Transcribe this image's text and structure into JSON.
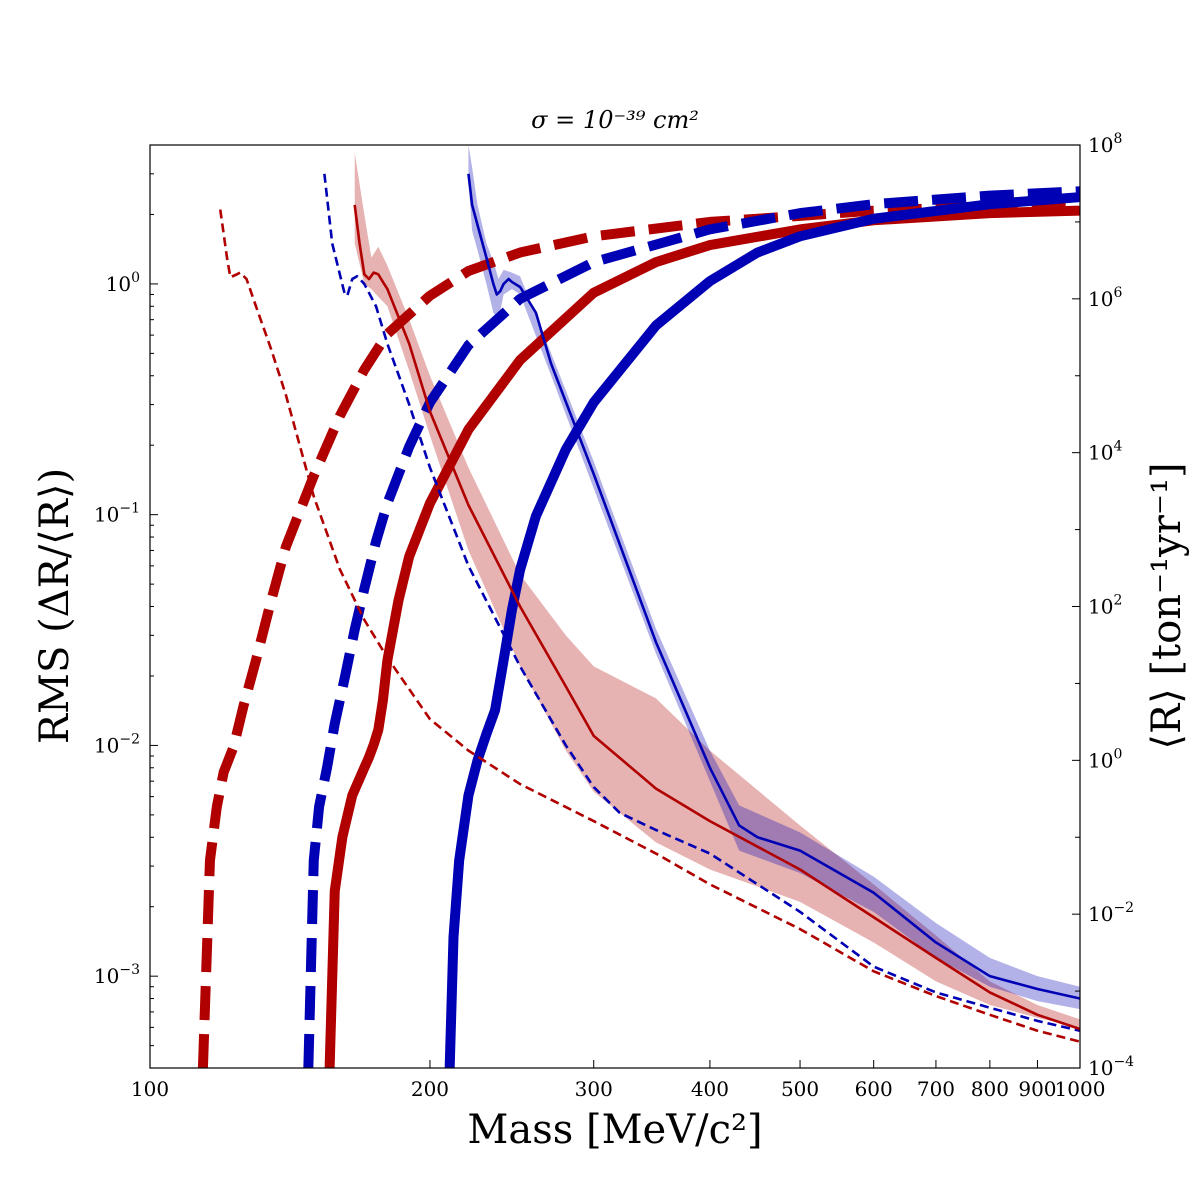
{
  "chart_data": {
    "type": "line",
    "title": "σ = 10⁻³⁹ cm²",
    "xlabel": "Mass [MeV/c²]",
    "ylabel_left": "RMS (ΔR/⟨R⟩)",
    "ylabel_right": "⟨R⟩ [ton⁻¹yr⁻¹]",
    "xscale": "log",
    "yscale_left": "log",
    "yscale_right": "log",
    "xlim": [
      100,
      1000
    ],
    "ylim_left": [
      0.0004,
      4
    ],
    "ylim_right": [
      0.0001,
      100000000
    ],
    "x_ticks": [
      {
        "value": 100,
        "label": "100"
      },
      {
        "value": 200,
        "label": "200"
      },
      {
        "value": 300,
        "label": "300"
      },
      {
        "value": 400,
        "label": "400"
      },
      {
        "value": 500,
        "label": "500"
      },
      {
        "value": 600,
        "label": "600"
      },
      {
        "value": 700,
        "label": "700"
      },
      {
        "value": 800,
        "label": "800"
      },
      {
        "value": 900,
        "label": "900"
      },
      {
        "value": 1000,
        "label": "1000"
      }
    ],
    "y_ticks_left": [
      {
        "value": 0.001,
        "base": "10",
        "exp": "−3"
      },
      {
        "value": 0.01,
        "base": "10",
        "exp": "−2"
      },
      {
        "value": 0.1,
        "base": "10",
        "exp": "−1"
      },
      {
        "value": 1,
        "base": "10",
        "exp": "0"
      }
    ],
    "y_ticks_right": [
      {
        "value": 0.0001,
        "base": "10",
        "exp": "−4"
      },
      {
        "value": 0.01,
        "base": "10",
        "exp": "−2"
      },
      {
        "value": 1,
        "base": "10",
        "exp": "0"
      },
      {
        "value": 100,
        "base": "10",
        "exp": "2"
      },
      {
        "value": 10000,
        "base": "10",
        "exp": "4"
      },
      {
        "value": 1000000,
        "base": "10",
        "exp": "6"
      },
      {
        "value": 100000000,
        "base": "10",
        "exp": "8"
      }
    ],
    "series": [
      {
        "name": "rate-red-dashed",
        "axis": "right",
        "color": "#b00000",
        "style": "dashed-thick",
        "points": [
          [
            114,
            0.0001
          ],
          [
            116,
            0.05
          ],
          [
            118,
            0.25
          ],
          [
            120,
            0.7
          ],
          [
            123,
            1.5
          ],
          [
            126,
            5
          ],
          [
            130,
            20
          ],
          [
            135,
            120
          ],
          [
            140,
            600
          ],
          [
            150,
            5000
          ],
          [
            160,
            30000
          ],
          [
            170,
            120000
          ],
          [
            180,
            350000
          ],
          [
            200,
            1100000
          ],
          [
            220,
            2300000
          ],
          [
            250,
            4000000
          ],
          [
            300,
            6500000
          ],
          [
            400,
            10000000
          ],
          [
            500,
            12000000
          ],
          [
            600,
            14000000
          ],
          [
            800,
            16000000
          ],
          [
            1000,
            17000000
          ]
        ]
      },
      {
        "name": "rate-blue-dashed",
        "axis": "right",
        "color": "#0000b4",
        "style": "dashed-thick",
        "points": [
          [
            148,
            0.0001
          ],
          [
            150,
            0.05
          ],
          [
            152,
            0.25
          ],
          [
            155,
            0.8
          ],
          [
            158,
            3
          ],
          [
            162,
            12
          ],
          [
            166,
            50
          ],
          [
            170,
            170
          ],
          [
            175,
            700
          ],
          [
            180,
            2200
          ],
          [
            190,
            12000
          ],
          [
            200,
            45000
          ],
          [
            220,
            250000
          ],
          [
            250,
            1000000
          ],
          [
            300,
            3000000
          ],
          [
            400,
            8000000
          ],
          [
            500,
            13000000
          ],
          [
            600,
            17000000
          ],
          [
            800,
            22000000
          ],
          [
            1000,
            25000000
          ]
        ]
      },
      {
        "name": "rate-red-solid",
        "axis": "right",
        "color": "#b00000",
        "style": "solid-thick",
        "points": [
          [
            156,
            0.0001
          ],
          [
            158,
            0.02
          ],
          [
            161,
            0.1
          ],
          [
            165,
            0.35
          ],
          [
            170,
            0.8
          ],
          [
            172,
            1.1
          ],
          [
            174,
            1.6
          ],
          [
            176,
            2.5
          ],
          [
            178,
            6
          ],
          [
            180,
            20
          ],
          [
            185,
            120
          ],
          [
            190,
            450
          ],
          [
            200,
            2200
          ],
          [
            220,
            20000
          ],
          [
            250,
            160000
          ],
          [
            300,
            1200000
          ],
          [
            350,
            3000000
          ],
          [
            400,
            5000000
          ],
          [
            500,
            8000000
          ],
          [
            600,
            10500000
          ],
          [
            800,
            13000000
          ],
          [
            1000,
            14000000
          ]
        ]
      },
      {
        "name": "rate-blue-solid",
        "axis": "right",
        "color": "#0000b4",
        "style": "solid-thick",
        "points": [
          [
            210,
            0.0001
          ],
          [
            212,
            0.005
          ],
          [
            215,
            0.05
          ],
          [
            220,
            0.35
          ],
          [
            225,
            1
          ],
          [
            230,
            2.2
          ],
          [
            235,
            4.5
          ],
          [
            240,
            20
          ],
          [
            245,
            90
          ],
          [
            250,
            300
          ],
          [
            260,
            1500
          ],
          [
            280,
            11000
          ],
          [
            300,
            45000
          ],
          [
            350,
            450000
          ],
          [
            400,
            1700000
          ],
          [
            450,
            4000000
          ],
          [
            500,
            6500000
          ],
          [
            600,
            11000000
          ],
          [
            800,
            17000000
          ],
          [
            1000,
            21000000
          ]
        ]
      },
      {
        "name": "rms-red-dashed",
        "axis": "left",
        "color": "#b00000",
        "style": "dashed-thin",
        "points": [
          [
            119,
            2.1
          ],
          [
            121,
            1.3
          ],
          [
            122,
            1.07
          ],
          [
            124,
            1.1
          ],
          [
            125,
            1.12
          ],
          [
            127,
            1.05
          ],
          [
            130,
            0.8
          ],
          [
            135,
            0.52
          ],
          [
            140,
            0.33
          ],
          [
            150,
            0.12
          ],
          [
            160,
            0.058
          ],
          [
            170,
            0.035
          ],
          [
            180,
            0.024
          ],
          [
            200,
            0.013
          ],
          [
            220,
            0.0095
          ],
          [
            250,
            0.0068
          ],
          [
            300,
            0.0047
          ],
          [
            350,
            0.0034
          ],
          [
            400,
            0.0025
          ],
          [
            500,
            0.0016
          ],
          [
            600,
            0.00105
          ],
          [
            700,
            0.00082
          ],
          [
            800,
            0.00068
          ],
          [
            900,
            0.00058
          ],
          [
            1000,
            0.00052
          ]
        ]
      },
      {
        "name": "rms-blue-dashed",
        "axis": "left",
        "color": "#0000b4",
        "style": "dashed-thin",
        "points": [
          [
            154,
            3
          ],
          [
            157,
            1.5
          ],
          [
            160,
            1.1
          ],
          [
            162,
            0.9
          ],
          [
            163,
            0.89
          ],
          [
            165,
            1.05
          ],
          [
            167,
            1.08
          ],
          [
            170,
            1
          ],
          [
            175,
            0.8
          ],
          [
            180,
            0.55
          ],
          [
            190,
            0.3
          ],
          [
            200,
            0.16
          ],
          [
            220,
            0.06
          ],
          [
            250,
            0.022
          ],
          [
            280,
            0.01
          ],
          [
            300,
            0.0066
          ],
          [
            320,
            0.0051
          ],
          [
            350,
            0.0043
          ],
          [
            400,
            0.0034
          ],
          [
            500,
            0.0019
          ],
          [
            600,
            0.0011
          ],
          [
            700,
            0.00085
          ],
          [
            800,
            0.00073
          ],
          [
            900,
            0.00064
          ],
          [
            1000,
            0.00058
          ]
        ]
      },
      {
        "name": "rms-red-solid",
        "axis": "left",
        "color": "#b00000",
        "style": "solid",
        "band_lower": [
          [
            166,
            1.5
          ],
          [
            170,
            1.0
          ],
          [
            173,
            0.95
          ],
          [
            176,
            0.88
          ],
          [
            180,
            0.8
          ],
          [
            190,
            0.42
          ],
          [
            200,
            0.22
          ],
          [
            220,
            0.07
          ],
          [
            250,
            0.022
          ],
          [
            280,
            0.0095
          ],
          [
            300,
            0.0063
          ],
          [
            350,
            0.0038
          ],
          [
            400,
            0.0029
          ],
          [
            500,
            0.0021
          ],
          [
            600,
            0.0014
          ],
          [
            700,
            0.00095
          ],
          [
            800,
            0.00075
          ],
          [
            900,
            0.00066
          ],
          [
            1000,
            0.0006
          ]
        ],
        "band_upper": [
          [
            166,
            3.7
          ],
          [
            170,
            2.0
          ],
          [
            173,
            1.3
          ],
          [
            176,
            1.45
          ],
          [
            180,
            1.2
          ],
          [
            190,
            0.7
          ],
          [
            200,
            0.4
          ],
          [
            220,
            0.16
          ],
          [
            250,
            0.055
          ],
          [
            280,
            0.03
          ],
          [
            300,
            0.022
          ],
          [
            350,
            0.016
          ],
          [
            400,
            0.0095
          ],
          [
            500,
            0.0045
          ],
          [
            600,
            0.0025
          ],
          [
            700,
            0.0015
          ],
          [
            800,
            0.00095
          ],
          [
            900,
            0.00075
          ],
          [
            1000,
            0.00065
          ]
        ],
        "points": [
          [
            166,
            2.2
          ],
          [
            168,
            1.5
          ],
          [
            170,
            1.1
          ],
          [
            172,
            1.05
          ],
          [
            174,
            1.12
          ],
          [
            176,
            1.1
          ],
          [
            178,
            1.02
          ],
          [
            180,
            0.95
          ],
          [
            190,
            0.55
          ],
          [
            200,
            0.28
          ],
          [
            220,
            0.11
          ],
          [
            250,
            0.04
          ],
          [
            280,
            0.018
          ],
          [
            300,
            0.011
          ],
          [
            350,
            0.0065
          ],
          [
            400,
            0.0047
          ],
          [
            500,
            0.0029
          ],
          [
            600,
            0.0018
          ],
          [
            700,
            0.0012
          ],
          [
            800,
            0.00085
          ],
          [
            900,
            0.00068
          ],
          [
            1000,
            0.00059
          ]
        ]
      },
      {
        "name": "rms-blue-solid",
        "axis": "left",
        "color": "#0000b4",
        "style": "solid",
        "band_lower": [
          [
            220,
            2.8
          ],
          [
            222,
            1.7
          ],
          [
            225,
            1.4
          ],
          [
            230,
            1.0
          ],
          [
            234,
            0.75
          ],
          [
            237,
            0.7
          ],
          [
            240,
            0.9
          ],
          [
            245,
            0.95
          ],
          [
            250,
            0.9
          ],
          [
            270,
            0.4
          ],
          [
            300,
            0.13
          ],
          [
            350,
            0.025
          ],
          [
            400,
            0.007
          ],
          [
            430,
            0.0035
          ],
          [
            500,
            0.0028
          ],
          [
            600,
            0.0019
          ],
          [
            700,
            0.0012
          ],
          [
            800,
            0.0009
          ],
          [
            900,
            0.00078
          ],
          [
            1000,
            0.00072
          ]
        ],
        "band_upper": [
          [
            220,
            4.0
          ],
          [
            222,
            3.2
          ],
          [
            225,
            2.2
          ],
          [
            230,
            1.5
          ],
          [
            234,
            1.25
          ],
          [
            237,
            1.05
          ],
          [
            240,
            1.15
          ],
          [
            245,
            1.12
          ],
          [
            250,
            1.08
          ],
          [
            270,
            0.5
          ],
          [
            300,
            0.17
          ],
          [
            350,
            0.032
          ],
          [
            400,
            0.0095
          ],
          [
            430,
            0.0055
          ],
          [
            500,
            0.0042
          ],
          [
            600,
            0.0027
          ],
          [
            700,
            0.0017
          ],
          [
            800,
            0.0012
          ],
          [
            900,
            0.001
          ],
          [
            1000,
            0.0009
          ]
        ],
        "points": [
          [
            220,
            3.0
          ],
          [
            222,
            2.2
          ],
          [
            225,
            1.8
          ],
          [
            230,
            1.3
          ],
          [
            234,
            1.0
          ],
          [
            236,
            0.9
          ],
          [
            238,
            0.93
          ],
          [
            240,
            1.0
          ],
          [
            243,
            1.05
          ],
          [
            245,
            1.02
          ],
          [
            250,
            0.97
          ],
          [
            260,
            0.75
          ],
          [
            270,
            0.45
          ],
          [
            300,
            0.15
          ],
          [
            350,
            0.028
          ],
          [
            400,
            0.008
          ],
          [
            430,
            0.0045
          ],
          [
            450,
            0.004
          ],
          [
            500,
            0.0035
          ],
          [
            600,
            0.0023
          ],
          [
            700,
            0.0014
          ],
          [
            800,
            0.001
          ],
          [
            900,
            0.00088
          ],
          [
            1000,
            0.0008
          ]
        ]
      }
    ]
  }
}
